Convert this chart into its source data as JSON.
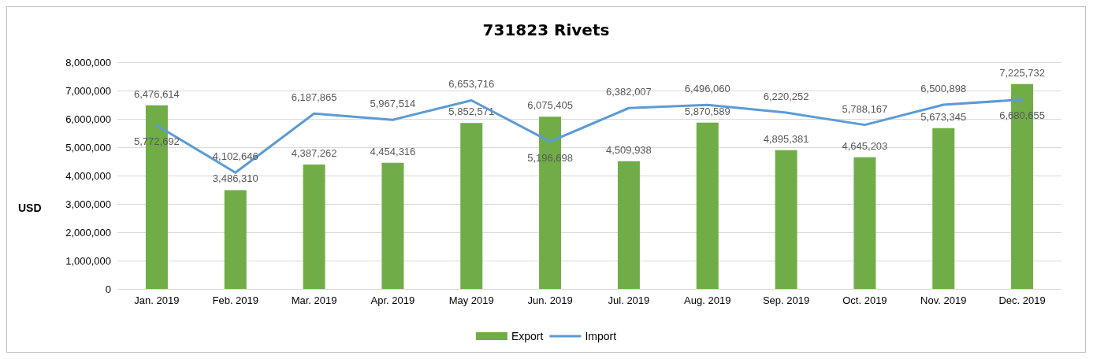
{
  "chart_data": {
    "type": "bar",
    "title": "731823 Rivets",
    "ylabel": "USD",
    "categories": [
      "Jan. 2019",
      "Feb. 2019",
      "Mar. 2019",
      "Apr. 2019",
      "May 2019",
      "Jun. 2019",
      "Jul. 2019",
      "Aug. 2019",
      "Sep. 2019",
      "Oct. 2019",
      "Nov. 2019",
      "Dec. 2019"
    ],
    "series": [
      {
        "name": "Export",
        "color": "#70ad47",
        "values": [
          6476614,
          3486310,
          4387262,
          4454316,
          5852571,
          6075405,
          4509938,
          5870589,
          4895381,
          4645203,
          5673345,
          7225732
        ],
        "value_labels": [
          "6,476,614",
          "3,486,310",
          "4,387,262",
          "4,454,316",
          "5,852,571",
          "6,075,405",
          "4,509,938",
          "5,870,589",
          "4,895,381",
          "4,645,203",
          "5,673,345",
          "7,225,732"
        ]
      },
      {
        "name": "Import",
        "type": "line",
        "color": "#5b9bd5",
        "values": [
          5772692,
          4102646,
          6187865,
          5967514,
          6653716,
          5196698,
          6382007,
          6496060,
          6220252,
          5788167,
          6500898,
          6680655
        ],
        "value_labels": [
          "5,772,692",
          "4,102,646",
          "6,187,865",
          "5,967,514",
          "6,653,716",
          "5,196,698",
          "6,382,007",
          "6,496,060",
          "6,220,252",
          "5,788,167",
          "6,500,898",
          "6,680,655"
        ]
      }
    ],
    "ylim": [
      0,
      8000000
    ],
    "yticks": [
      0,
      {
        "value": 1000000,
        "label": "1,000,000"
      },
      {
        "value": 2000000,
        "label": "2,000,000"
      },
      {
        "value": 3000000,
        "label": "3,000,000"
      },
      {
        "value": 4000000,
        "label": "4,000,000"
      },
      {
        "value": 5000000,
        "label": "5,000,000"
      },
      {
        "value": 6000000,
        "label": "6,000,000"
      },
      {
        "value": 7000000,
        "label": "7,000,000"
      },
      {
        "value": 8000000,
        "label": "8,000,000"
      }
    ],
    "grid": "y",
    "legend": "bottom",
    "marker": "none",
    "line_style": "solid"
  }
}
